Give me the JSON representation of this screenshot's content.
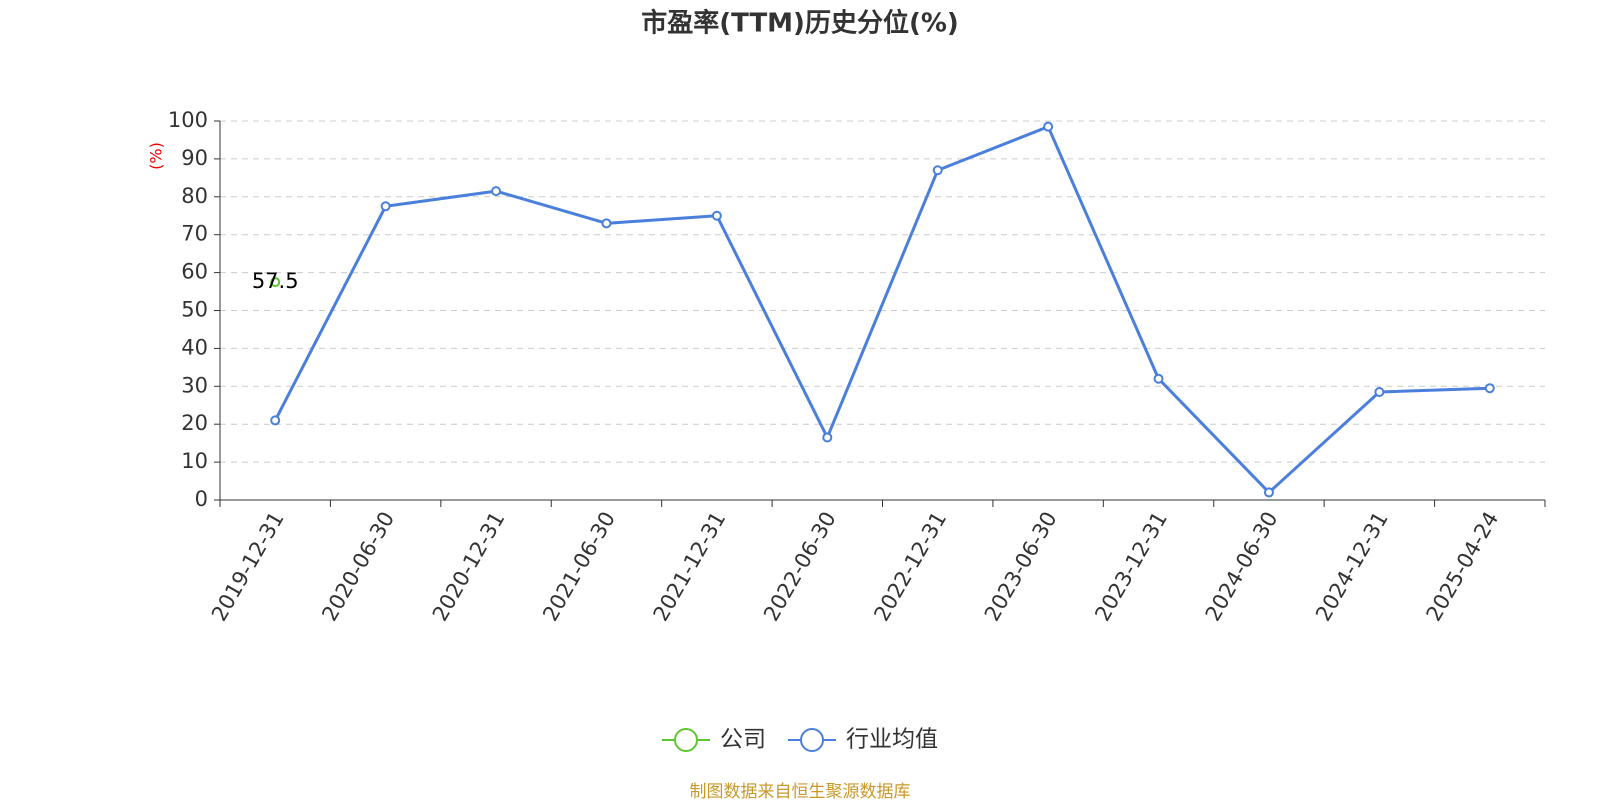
{
  "chart_data": {
    "type": "line",
    "title": "市盈率(TTM)历史分位(%)",
    "y_label": "(%)",
    "source": "制图数据来自恒生聚源数据库",
    "categories": [
      "2019-12-31",
      "2020-06-30",
      "2020-12-31",
      "2021-06-30",
      "2021-12-31",
      "2022-06-30",
      "2022-12-31",
      "2023-06-30",
      "2023-12-31",
      "2024-06-30",
      "2024-12-31",
      "2025-04-24"
    ],
    "series": [
      {
        "name": "公司",
        "color": "#5cc72e",
        "values": [
          57.5,
          null,
          null,
          null,
          null,
          null,
          null,
          null,
          null,
          null,
          null,
          null
        ]
      },
      {
        "name": "行业均值",
        "color": "#4a7fdc",
        "values": [
          21,
          77.5,
          81.5,
          73,
          75,
          16.5,
          87,
          98.5,
          32,
          2,
          28.5,
          29.5
        ]
      }
    ],
    "ylim": [
      0,
      100
    ],
    "yticks": [
      0,
      10,
      20,
      30,
      40,
      50,
      60,
      70,
      80,
      90,
      100
    ],
    "grid": true,
    "legend": "bottom"
  }
}
